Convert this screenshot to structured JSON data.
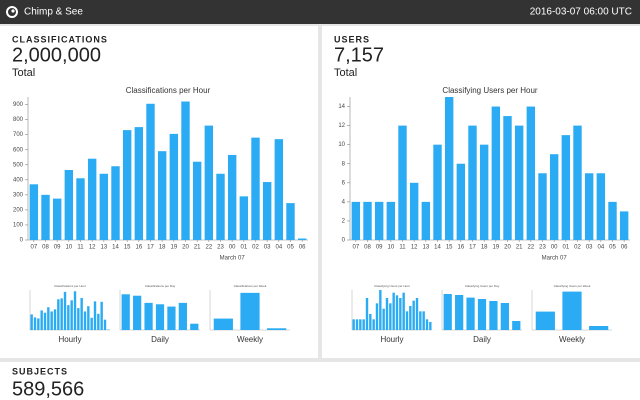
{
  "header": {
    "title": "Chimp & See",
    "timestamp": "2016-03-07 06:00 UTC"
  },
  "panels": [
    {
      "label": "CLASSIFICATIONS",
      "total": "2,000,000",
      "total_label": "Total",
      "chart": {
        "type": "bar",
        "title": "Classifications per Hour",
        "categories": [
          "07",
          "08",
          "09",
          "10",
          "11",
          "12",
          "13",
          "14",
          "15",
          "16",
          "17",
          "18",
          "19",
          "20",
          "21",
          "22",
          "23",
          "00",
          "01",
          "02",
          "03",
          "04",
          "05",
          "06"
        ],
        "annotation": "March 07",
        "values": [
          370,
          300,
          275,
          465,
          410,
          540,
          440,
          490,
          730,
          750,
          905,
          590,
          705,
          920,
          520,
          760,
          440,
          565,
          290,
          680,
          385,
          670,
          245,
          10
        ],
        "color": "#2aabf3",
        "ylim": [
          0,
          950
        ],
        "yticks": [
          0,
          100,
          200,
          300,
          400,
          500,
          600,
          700,
          800,
          900
        ]
      },
      "mini": [
        {
          "title": "Classifications per Hour",
          "label": "Hourly"
        },
        {
          "title": "Classifications per Day",
          "label": "Daily",
          "values": [
            12500,
            12000,
            9500,
            9000,
            8200,
            9500,
            2200
          ],
          "ylim": [
            0,
            14000
          ]
        },
        {
          "title": "Classifications per Week",
          "label": "Weekly",
          "values": [
            20000,
            65000,
            3000
          ],
          "ylim": [
            0,
            70000
          ]
        }
      ]
    },
    {
      "label": "USERS",
      "total": "7,157",
      "total_label": "Total",
      "chart": {
        "type": "bar",
        "title": "Classifying Users per Hour",
        "categories": [
          "07",
          "08",
          "09",
          "10",
          "11",
          "12",
          "13",
          "14",
          "15",
          "16",
          "17",
          "18",
          "19",
          "20",
          "21",
          "22",
          "23",
          "00",
          "01",
          "02",
          "03",
          "04",
          "05",
          "06"
        ],
        "annotation": "March 07",
        "values": [
          4,
          4,
          4,
          4,
          12,
          6,
          4,
          10,
          15,
          8,
          12,
          10,
          14,
          13,
          12,
          14,
          7,
          9,
          11,
          12,
          7,
          7,
          4,
          3
        ],
        "color": "#2aabf3",
        "ylim": [
          0,
          15
        ],
        "yticks": [
          0,
          2,
          4,
          6,
          8,
          10,
          12,
          14
        ]
      },
      "mini": [
        {
          "title": "Classifying Users per Hour",
          "label": "Hourly"
        },
        {
          "title": "Classifying Users per Day",
          "label": "Daily",
          "values": [
            180,
            175,
            162,
            155,
            145,
            135,
            45
          ],
          "ylim": [
            0,
            200
          ]
        },
        {
          "title": "Classifying Users per Week",
          "label": "Weekly",
          "values": [
            230,
            480,
            50
          ],
          "ylim": [
            0,
            500
          ]
        }
      ]
    }
  ],
  "subjects": {
    "label": "SUBJECTS",
    "total": "589,566"
  }
}
